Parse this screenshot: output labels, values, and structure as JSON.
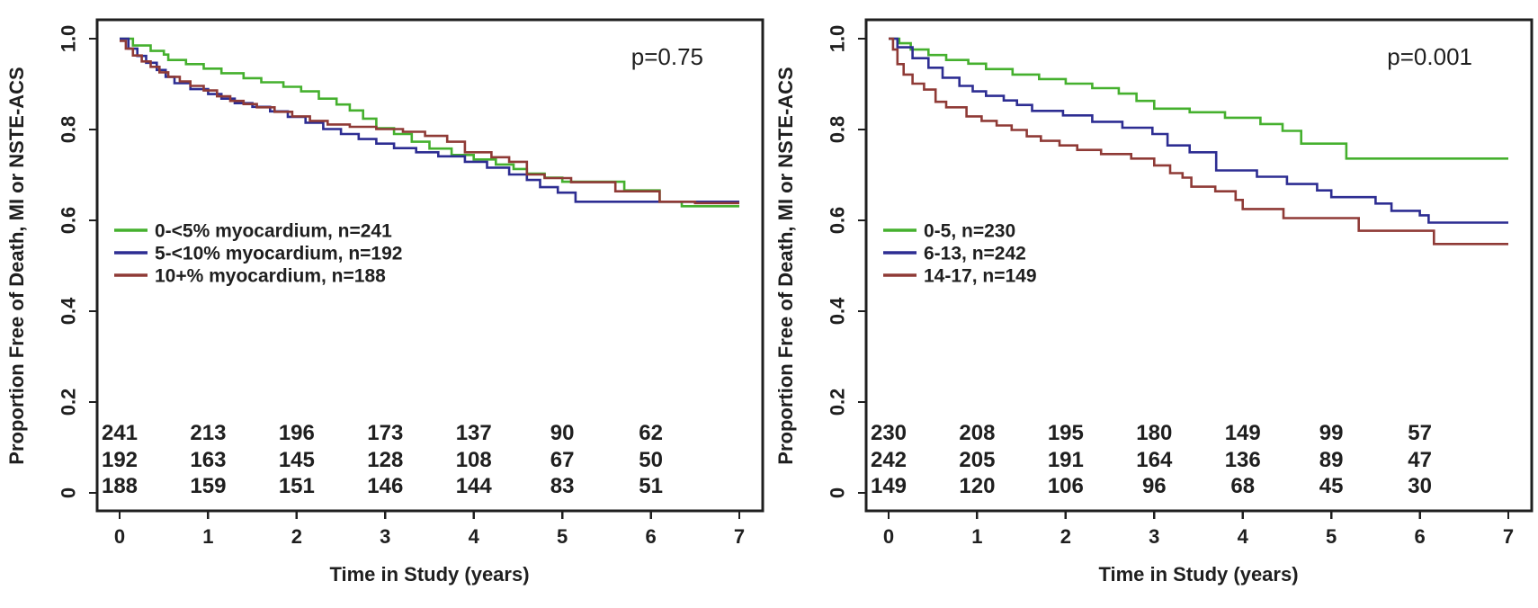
{
  "figure": {
    "background": "#ffffff",
    "frame_color": "#1f1f1f"
  },
  "chart_data": [
    {
      "type": "line",
      "subtype": "kaplan-meier-step",
      "title": "",
      "p_value": "p=0.75",
      "xlabel": "Time in Study (years)",
      "ylabel": "Proportion Free of Death, MI or NSTE-ACS",
      "xlim": [
        0,
        7
      ],
      "ylim": [
        0,
        1.0
      ],
      "xticks": [
        0,
        1,
        2,
        3,
        4,
        5,
        6,
        7
      ],
      "xtick_labels": [
        "0",
        "1",
        "2",
        "3",
        "4",
        "5",
        "6",
        "7"
      ],
      "yticks": [
        0,
        0.2,
        0.4,
        0.6,
        0.8,
        1.0
      ],
      "ytick_labels": [
        "0",
        "0.2",
        "0.4",
        "0.6",
        "0.8",
        "1.0"
      ],
      "grid": false,
      "legend_position": "middle-left",
      "at_risk_times": [
        0,
        1,
        2,
        3,
        4,
        5,
        6
      ],
      "series": [
        {
          "name": "0-<5% myocardium, n=241",
          "color": "#45b02e",
          "number_color": "#2e9c3a",
          "at_risk": [
            241,
            213,
            196,
            173,
            137,
            90,
            62
          ],
          "points": [
            [
              0,
              1.0
            ],
            [
              0.15,
              0.985
            ],
            [
              0.35,
              0.973
            ],
            [
              0.5,
              0.965
            ],
            [
              0.55,
              0.953
            ],
            [
              0.75,
              0.944
            ],
            [
              0.95,
              0.934
            ],
            [
              1.15,
              0.924
            ],
            [
              1.4,
              0.913
            ],
            [
              1.6,
              0.904
            ],
            [
              1.85,
              0.894
            ],
            [
              2.05,
              0.884
            ],
            [
              2.25,
              0.868
            ],
            [
              2.45,
              0.855
            ],
            [
              2.6,
              0.842
            ],
            [
              2.75,
              0.824
            ],
            [
              2.9,
              0.803
            ],
            [
              3.1,
              0.79
            ],
            [
              3.3,
              0.773
            ],
            [
              3.5,
              0.758
            ],
            [
              3.75,
              0.744
            ],
            [
              4.0,
              0.734
            ],
            [
              4.25,
              0.723
            ],
            [
              4.45,
              0.713
            ],
            [
              4.6,
              0.703
            ],
            [
              4.8,
              0.694
            ],
            [
              5.0,
              0.685
            ],
            [
              5.7,
              0.666
            ],
            [
              6.1,
              0.641
            ],
            [
              6.35,
              0.631
            ],
            [
              7,
              0.631
            ]
          ]
        },
        {
          "name": "5-<10% myocardium, n=192",
          "color": "#2d2d92",
          "number_color": "#2525ce",
          "at_risk": [
            192,
            163,
            145,
            128,
            108,
            67,
            50
          ],
          "points": [
            [
              0,
              1.0
            ],
            [
              0.1,
              0.978
            ],
            [
              0.2,
              0.962
            ],
            [
              0.3,
              0.947
            ],
            [
              0.42,
              0.931
            ],
            [
              0.52,
              0.916
            ],
            [
              0.62,
              0.902
            ],
            [
              0.8,
              0.889
            ],
            [
              1.0,
              0.878
            ],
            [
              1.15,
              0.868
            ],
            [
              1.3,
              0.858
            ],
            [
              1.5,
              0.85
            ],
            [
              1.7,
              0.84
            ],
            [
              1.9,
              0.828
            ],
            [
              2.1,
              0.815
            ],
            [
              2.3,
              0.801
            ],
            [
              2.5,
              0.79
            ],
            [
              2.7,
              0.779
            ],
            [
              2.9,
              0.769
            ],
            [
              3.1,
              0.759
            ],
            [
              3.35,
              0.75
            ],
            [
              3.6,
              0.741
            ],
            [
              3.9,
              0.729
            ],
            [
              4.15,
              0.716
            ],
            [
              4.4,
              0.701
            ],
            [
              4.6,
              0.689
            ],
            [
              4.75,
              0.673
            ],
            [
              4.95,
              0.661
            ],
            [
              5.15,
              0.641
            ],
            [
              7,
              0.641
            ]
          ]
        },
        {
          "name": "10+% myocardium, n=188",
          "color": "#8f3a36",
          "number_color": "#9c2024",
          "at_risk": [
            188,
            159,
            151,
            146,
            144,
            83,
            51
          ],
          "points": [
            [
              0,
              0.995
            ],
            [
              0.07,
              0.978
            ],
            [
              0.15,
              0.963
            ],
            [
              0.25,
              0.95
            ],
            [
              0.35,
              0.938
            ],
            [
              0.45,
              0.926
            ],
            [
              0.55,
              0.916
            ],
            [
              0.68,
              0.906
            ],
            [
              0.8,
              0.896
            ],
            [
              0.95,
              0.886
            ],
            [
              1.1,
              0.873
            ],
            [
              1.25,
              0.863
            ],
            [
              1.4,
              0.856
            ],
            [
              1.55,
              0.849
            ],
            [
              1.75,
              0.839
            ],
            [
              1.95,
              0.829
            ],
            [
              2.15,
              0.819
            ],
            [
              2.35,
              0.811
            ],
            [
              2.6,
              0.806
            ],
            [
              2.9,
              0.801
            ],
            [
              3.2,
              0.795
            ],
            [
              3.45,
              0.786
            ],
            [
              3.7,
              0.773
            ],
            [
              3.9,
              0.75
            ],
            [
              4.2,
              0.739
            ],
            [
              4.4,
              0.729
            ],
            [
              4.6,
              0.701
            ],
            [
              4.8,
              0.693
            ],
            [
              5.1,
              0.684
            ],
            [
              5.6,
              0.664
            ],
            [
              6.1,
              0.641
            ],
            [
              6.5,
              0.638
            ],
            [
              7,
              0.638
            ]
          ]
        }
      ]
    },
    {
      "type": "line",
      "subtype": "kaplan-meier-step",
      "title": "",
      "p_value": "p=0.001",
      "xlabel": "Time in Study (years)",
      "ylabel": "Proportion Free of Death, MI or NSTE-ACS",
      "xlim": [
        0,
        7
      ],
      "ylim": [
        0,
        1.0
      ],
      "xticks": [
        0,
        1,
        2,
        3,
        4,
        5,
        6,
        7
      ],
      "xtick_labels": [
        "0",
        "1",
        "2",
        "3",
        "4",
        "5",
        "6",
        "7"
      ],
      "yticks": [
        0,
        0.2,
        0.4,
        0.6,
        0.8,
        1.0
      ],
      "ytick_labels": [
        "0",
        "0.2",
        "0.4",
        "0.6",
        "0.8",
        "1.0"
      ],
      "grid": false,
      "legend_position": "middle-left",
      "at_risk_times": [
        0,
        1,
        2,
        3,
        4,
        5,
        6
      ],
      "series": [
        {
          "name": "0-5, n=230",
          "color": "#45b02e",
          "number_color": "#2e9c3a",
          "at_risk": [
            230,
            208,
            195,
            180,
            149,
            99,
            57
          ],
          "points": [
            [
              0,
              1.0
            ],
            [
              0.12,
              0.99
            ],
            [
              0.25,
              0.976
            ],
            [
              0.45,
              0.964
            ],
            [
              0.65,
              0.953
            ],
            [
              0.9,
              0.945
            ],
            [
              1.1,
              0.933
            ],
            [
              1.4,
              0.921
            ],
            [
              1.7,
              0.911
            ],
            [
              2.0,
              0.901
            ],
            [
              2.3,
              0.891
            ],
            [
              2.6,
              0.879
            ],
            [
              2.8,
              0.863
            ],
            [
              3.0,
              0.846
            ],
            [
              3.4,
              0.838
            ],
            [
              3.8,
              0.826
            ],
            [
              4.2,
              0.812
            ],
            [
              4.45,
              0.797
            ],
            [
              4.66,
              0.769
            ],
            [
              5.17,
              0.736
            ],
            [
              7,
              0.736
            ]
          ]
        },
        {
          "name": "6-13, n=242",
          "color": "#2d2d92",
          "number_color": "#2525ce",
          "at_risk": [
            242,
            205,
            191,
            164,
            136,
            89,
            47
          ],
          "points": [
            [
              0,
              1.0
            ],
            [
              0.1,
              0.981
            ],
            [
              0.27,
              0.957
            ],
            [
              0.45,
              0.936
            ],
            [
              0.61,
              0.914
            ],
            [
              0.8,
              0.896
            ],
            [
              0.95,
              0.884
            ],
            [
              1.1,
              0.874
            ],
            [
              1.3,
              0.864
            ],
            [
              1.45,
              0.854
            ],
            [
              1.62,
              0.841
            ],
            [
              1.97,
              0.831
            ],
            [
              2.3,
              0.817
            ],
            [
              2.64,
              0.804
            ],
            [
              2.98,
              0.79
            ],
            [
              3.15,
              0.765
            ],
            [
              3.4,
              0.75
            ],
            [
              3.7,
              0.71
            ],
            [
              4.16,
              0.696
            ],
            [
              4.5,
              0.68
            ],
            [
              4.84,
              0.666
            ],
            [
              5.0,
              0.651
            ],
            [
              5.5,
              0.637
            ],
            [
              5.68,
              0.621
            ],
            [
              6.0,
              0.611
            ],
            [
              6.1,
              0.595
            ],
            [
              7,
              0.595
            ]
          ]
        },
        {
          "name": "14-17, n=149",
          "color": "#8f3a36",
          "number_color": "#9c2024",
          "at_risk": [
            149,
            120,
            106,
            96,
            68,
            45,
            30
          ],
          "points": [
            [
              0,
              1.0
            ],
            [
              0.05,
              0.976
            ],
            [
              0.1,
              0.944
            ],
            [
              0.17,
              0.921
            ],
            [
              0.27,
              0.901
            ],
            [
              0.4,
              0.888
            ],
            [
              0.53,
              0.861
            ],
            [
              0.65,
              0.849
            ],
            [
              0.88,
              0.829
            ],
            [
              1.05,
              0.819
            ],
            [
              1.22,
              0.809
            ],
            [
              1.39,
              0.799
            ],
            [
              1.56,
              0.785
            ],
            [
              1.72,
              0.775
            ],
            [
              1.93,
              0.765
            ],
            [
              2.13,
              0.755
            ],
            [
              2.4,
              0.746
            ],
            [
              2.74,
              0.736
            ],
            [
              3.0,
              0.721
            ],
            [
              3.18,
              0.704
            ],
            [
              3.32,
              0.694
            ],
            [
              3.42,
              0.674
            ],
            [
              3.69,
              0.664
            ],
            [
              3.92,
              0.645
            ],
            [
              4.0,
              0.625
            ],
            [
              4.46,
              0.605
            ],
            [
              5.31,
              0.577
            ],
            [
              6.16,
              0.548
            ],
            [
              7,
              0.548
            ]
          ]
        }
      ]
    }
  ]
}
